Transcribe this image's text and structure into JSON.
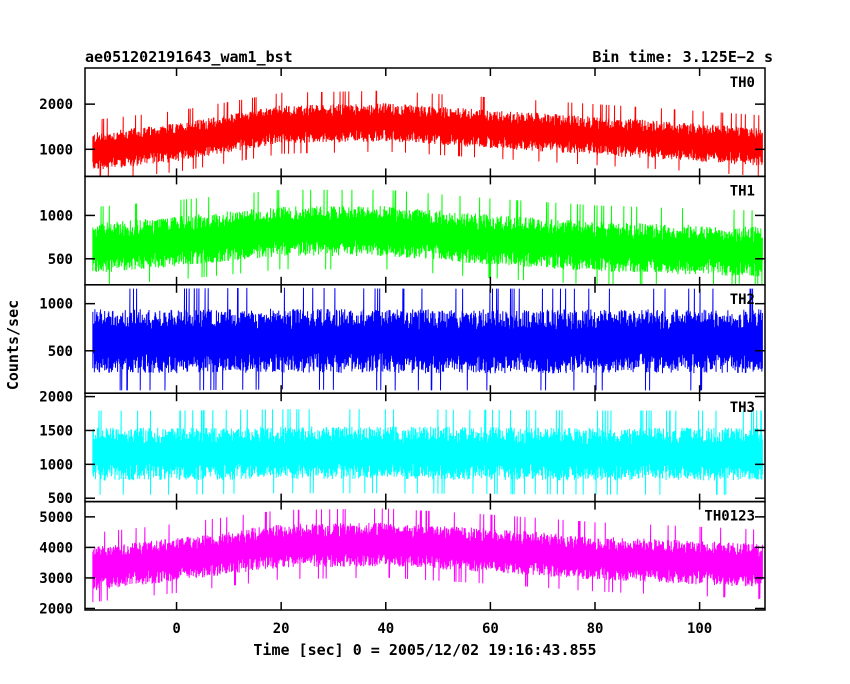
{
  "header": {
    "left_title": "ae051202191643_wam1_bst",
    "right_title": "Bin time: 3.125E−2 s"
  },
  "chart_data": {
    "type": "line",
    "xlabel": "Time [sec] 0 = 2005/12/02 19:16:43.855",
    "ylabel": "Counts/sec",
    "xlim": [
      -17.5,
      112.5
    ],
    "x_ticks": [
      0,
      20,
      40,
      60,
      80,
      100
    ],
    "x_tick_labels": [
      "0",
      "20",
      "40",
      "60",
      "80",
      "100"
    ],
    "panels": [
      {
        "label": "TH0",
        "color": "#ff0000",
        "ylim": [
          400,
          2800
        ],
        "y_ticks": [
          1000,
          2000
        ],
        "y_tick_labels": [
          "1000",
          "2000"
        ],
        "profile": {
          "t": [
            -16,
            0,
            20,
            40,
            60,
            80,
            100,
            112
          ],
          "mean": [
            950,
            1150,
            1550,
            1600,
            1450,
            1300,
            1150,
            1050
          ]
        },
        "noise_amp": 250,
        "spike_max": 2800
      },
      {
        "label": "TH1",
        "color": "#00ff00",
        "ylim": [
          200,
          1450
        ],
        "y_ticks": [
          500,
          1000
        ],
        "y_tick_labels": [
          "500",
          "1000"
        ],
        "profile": {
          "t": [
            -16,
            0,
            20,
            40,
            60,
            80,
            100,
            112
          ],
          "mean": [
            620,
            700,
            820,
            820,
            720,
            640,
            600,
            580
          ]
        },
        "noise_amp": 170,
        "spike_max": 1450
      },
      {
        "label": "TH2",
        "color": "#0000ff",
        "ylim": [
          50,
          1200
        ],
        "y_ticks": [
          500,
          1000
        ],
        "y_tick_labels": [
          "500",
          "1000"
        ],
        "profile": {
          "t": [
            -16,
            0,
            20,
            40,
            60,
            80,
            100,
            112
          ],
          "mean": [
            600,
            600,
            610,
            600,
            600,
            600,
            600,
            600
          ]
        },
        "noise_amp": 200,
        "spike_max": 1200
      },
      {
        "label": "TH3",
        "color": "#00ffff",
        "ylim": [
          450,
          2050
        ],
        "y_ticks": [
          500,
          1000,
          1500,
          2000
        ],
        "y_tick_labels": [
          "500",
          "1000",
          "1500",
          "2000"
        ],
        "profile": {
          "t": [
            -16,
            0,
            20,
            40,
            60,
            80,
            100,
            112
          ],
          "mean": [
            1150,
            1150,
            1170,
            1170,
            1160,
            1150,
            1150,
            1150
          ]
        },
        "noise_amp": 230,
        "spike_max": 2050
      },
      {
        "label": "TH0123",
        "color": "#ff00ff",
        "ylim": [
          1950,
          5500
        ],
        "y_ticks": [
          2000,
          3000,
          4000,
          5000
        ],
        "y_tick_labels": [
          "2000",
          "3000",
          "4000",
          "5000"
        ],
        "profile": {
          "t": [
            -16,
            0,
            20,
            40,
            60,
            80,
            100,
            112
          ],
          "mean": [
            3300,
            3600,
            4050,
            4100,
            3900,
            3650,
            3500,
            3400
          ]
        },
        "noise_amp": 420,
        "spike_max": 5500
      }
    ]
  }
}
